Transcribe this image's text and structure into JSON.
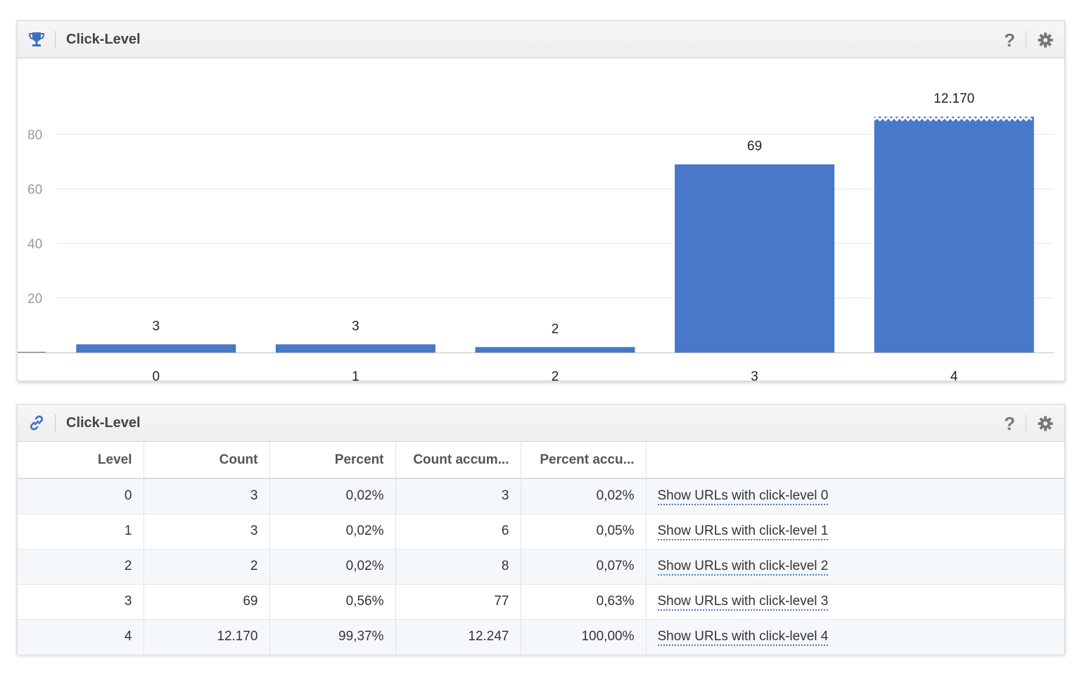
{
  "chart_widget": {
    "title": "Click-Level",
    "icon": "trophy-icon",
    "help_label": "?"
  },
  "table_widget": {
    "title": "Click-Level",
    "icon": "link-icon",
    "help_label": "?"
  },
  "colors": {
    "bar": "#4878c8",
    "accent": "#3a6fc4"
  },
  "chart_data": {
    "type": "bar",
    "categories": [
      "0",
      "1",
      "2",
      "3",
      "4"
    ],
    "values": [
      3,
      3,
      2,
      69,
      12170
    ],
    "value_labels": [
      "3",
      "3",
      "2",
      "69",
      "12.170"
    ],
    "yticks": [
      "20",
      "40",
      "60",
      "80"
    ],
    "ylim": [
      0,
      85
    ],
    "axis_break_on": "4",
    "grid": true,
    "title": "",
    "xlabel": "",
    "ylabel": ""
  },
  "table": {
    "columns": [
      "Level",
      "Count",
      "Percent",
      "Count accum...",
      "Percent accu...",
      ""
    ],
    "rows": [
      [
        "0",
        "3",
        "0,02%",
        "3",
        "0,02%",
        "Show URLs with click-level 0"
      ],
      [
        "1",
        "3",
        "0,02%",
        "6",
        "0,05%",
        "Show URLs with click-level 1"
      ],
      [
        "2",
        "2",
        "0,02%",
        "8",
        "0,07%",
        "Show URLs with click-level 2"
      ],
      [
        "3",
        "69",
        "0,56%",
        "77",
        "0,63%",
        "Show URLs with click-level 3"
      ],
      [
        "4",
        "12.170",
        "99,37%",
        "12.247",
        "100,00%",
        "Show URLs with click-level 4"
      ]
    ]
  }
}
